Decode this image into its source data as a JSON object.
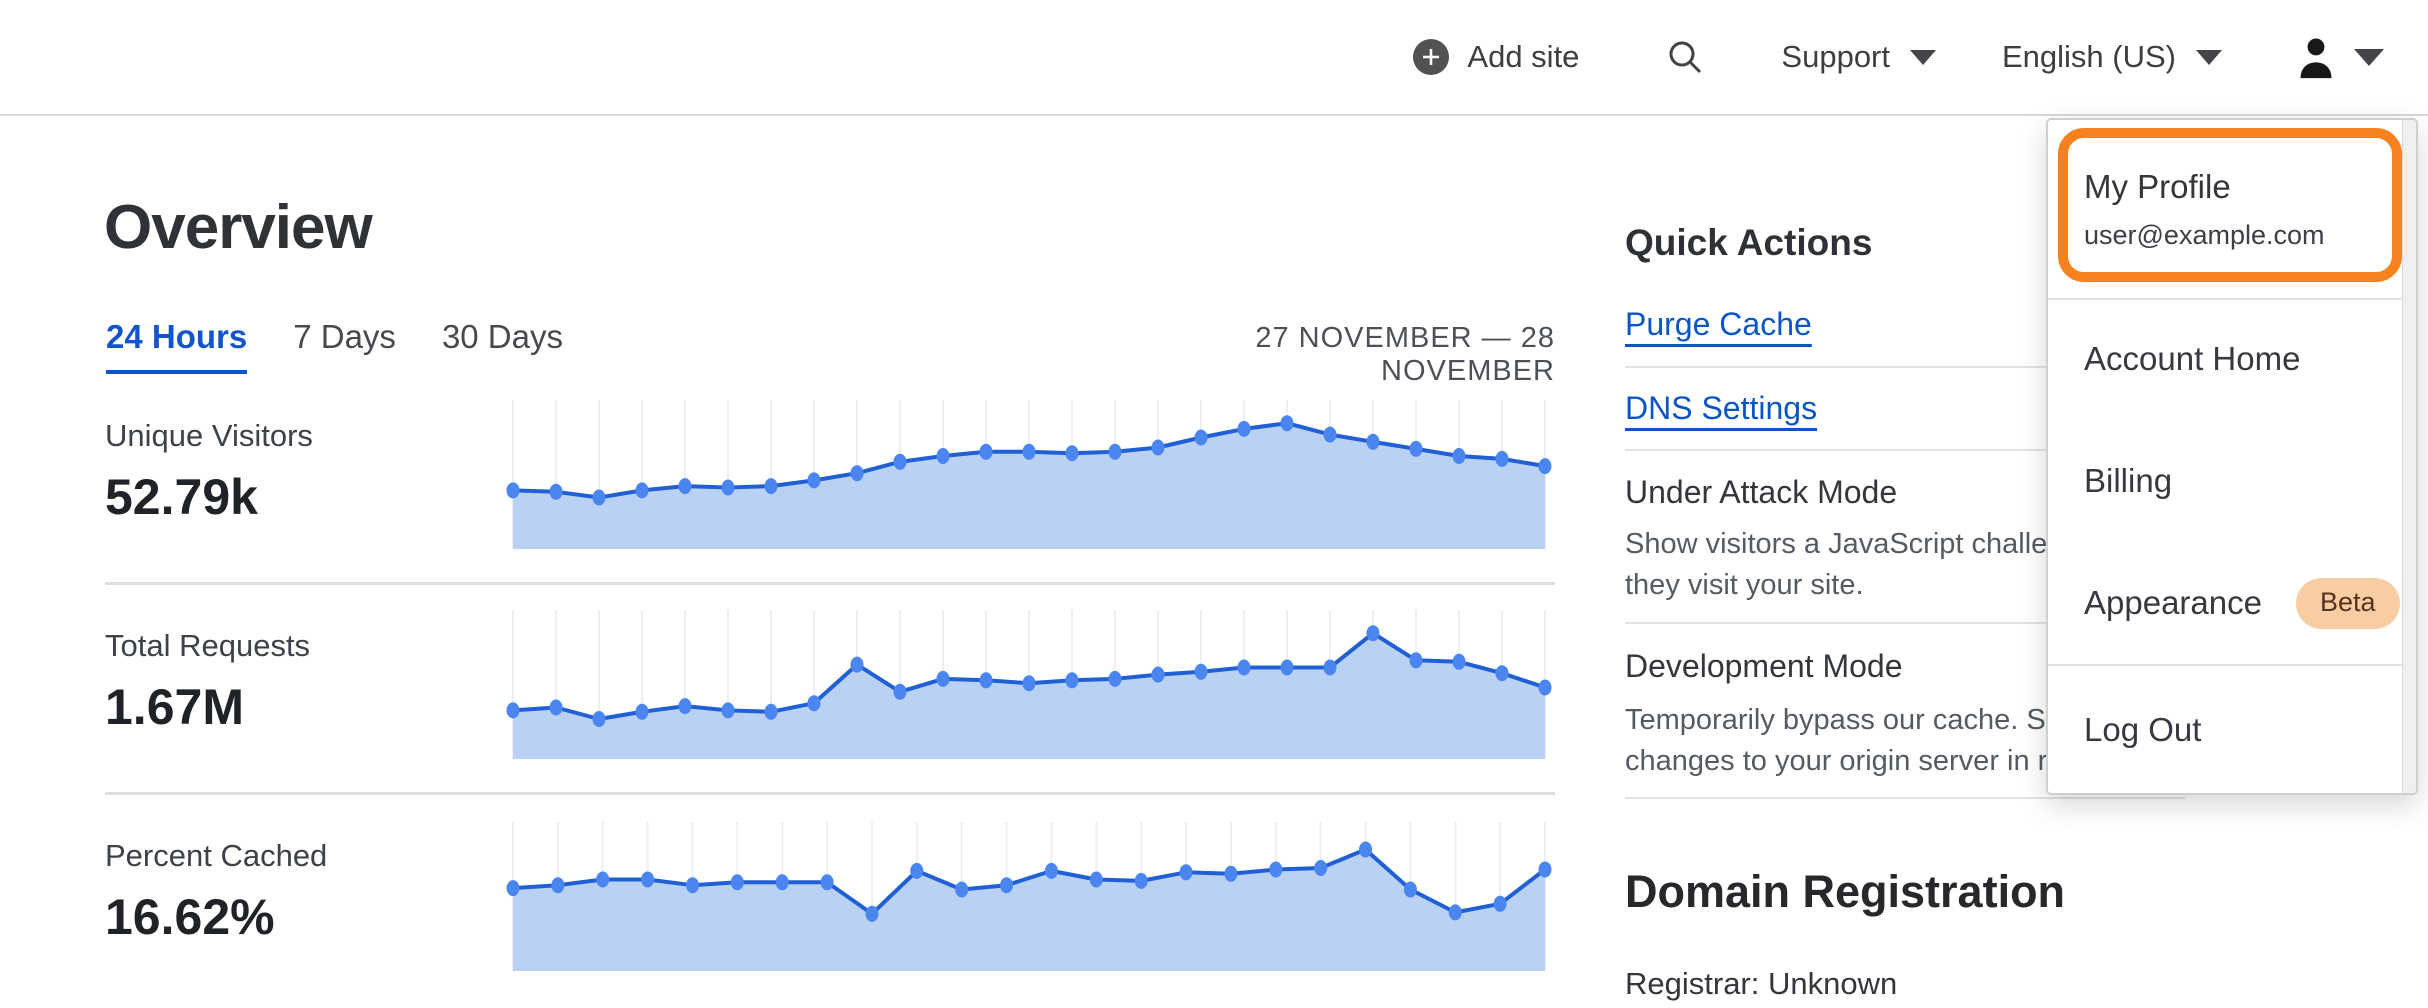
{
  "topbar": {
    "add_site": "Add site",
    "support": "Support",
    "language": "English (US)"
  },
  "overview": {
    "title": "Overview",
    "tabs": [
      {
        "label": "24 Hours",
        "active": true
      },
      {
        "label": "7 Days",
        "active": false
      },
      {
        "label": "30 Days",
        "active": false
      }
    ],
    "date_range": "27 NOVEMBER — 28 NOVEMBER"
  },
  "metrics": [
    {
      "label": "Unique Visitors",
      "value": "52.79k"
    },
    {
      "label": "Total Requests",
      "value": "1.67M"
    },
    {
      "label": "Percent Cached",
      "value": "16.62%"
    }
  ],
  "chart_data": [
    {
      "type": "area",
      "title": "Unique Visitors",
      "summary_value": "52.79k",
      "x_range": [
        "27 November",
        "28 November"
      ],
      "xlabel": "",
      "ylabel": "",
      "values_unit": "relative_height_percent",
      "ylim": [
        0,
        100
      ],
      "grid": "vertical-only",
      "legend": "none",
      "values": [
        41,
        40,
        36,
        41,
        44,
        43,
        44,
        48,
        53,
        61,
        65,
        68,
        68,
        67,
        68,
        71,
        78,
        84,
        88,
        80,
        75,
        70,
        65,
        63,
        58
      ]
    },
    {
      "type": "area",
      "title": "Total Requests",
      "summary_value": "1.67M",
      "x_range": [
        "27 November",
        "28 November"
      ],
      "xlabel": "",
      "ylabel": "",
      "values_unit": "relative_height_percent",
      "ylim": [
        0,
        100
      ],
      "grid": "vertical-only",
      "legend": "none",
      "values": [
        34,
        36,
        28,
        33,
        37,
        34,
        33,
        39,
        66,
        47,
        56,
        55,
        53,
        55,
        56,
        59,
        61,
        64,
        64,
        64,
        88,
        69,
        68,
        60,
        50
      ]
    },
    {
      "type": "area",
      "title": "Percent Cached",
      "summary_value": "16.62%",
      "x_range": [
        "27 November",
        "28 November"
      ],
      "xlabel": "",
      "ylabel": "",
      "values_unit": "relative_height_percent",
      "ylim": [
        0,
        100
      ],
      "grid": "vertical-only",
      "legend": "none",
      "values": [
        58,
        60,
        64,
        64,
        60,
        62,
        62,
        62,
        40,
        70,
        57,
        60,
        70,
        64,
        63,
        69,
        68,
        71,
        72,
        85,
        57,
        41,
        47,
        71
      ]
    }
  ],
  "quick_actions": {
    "title": "Quick Actions",
    "links": [
      {
        "label": "Purge Cache"
      },
      {
        "label": "DNS Settings"
      }
    ],
    "modes": [
      {
        "label": "Under Attack Mode",
        "description": "Show visitors a JavaScript challenge when they visit your site."
      },
      {
        "label": "Development Mode",
        "description": "Temporarily bypass our cache. See changes to your origin server in realtime."
      }
    ]
  },
  "domain_registration": {
    "title": "Domain Registration",
    "registrar": "Registrar: Unknown"
  },
  "dropdown": {
    "profile": {
      "label": "My Profile",
      "email": "user@example.com"
    },
    "items": [
      {
        "label": "Account Home"
      },
      {
        "label": "Billing"
      },
      {
        "label": "Appearance",
        "badge": "Beta"
      },
      {
        "label": "Log Out"
      }
    ]
  },
  "colors": {
    "brand_orange": "#f6821f",
    "link_blue": "#0b55c6",
    "tab_active_blue": "#1254cb",
    "chart_line": "#2160d4",
    "chart_dot": "#4b85f0",
    "chart_fill": "#b9d1f3",
    "chart_grid": "#edeff4",
    "beta_badge_bg": "#f8cda4",
    "beta_badge_text": "#58331b"
  }
}
